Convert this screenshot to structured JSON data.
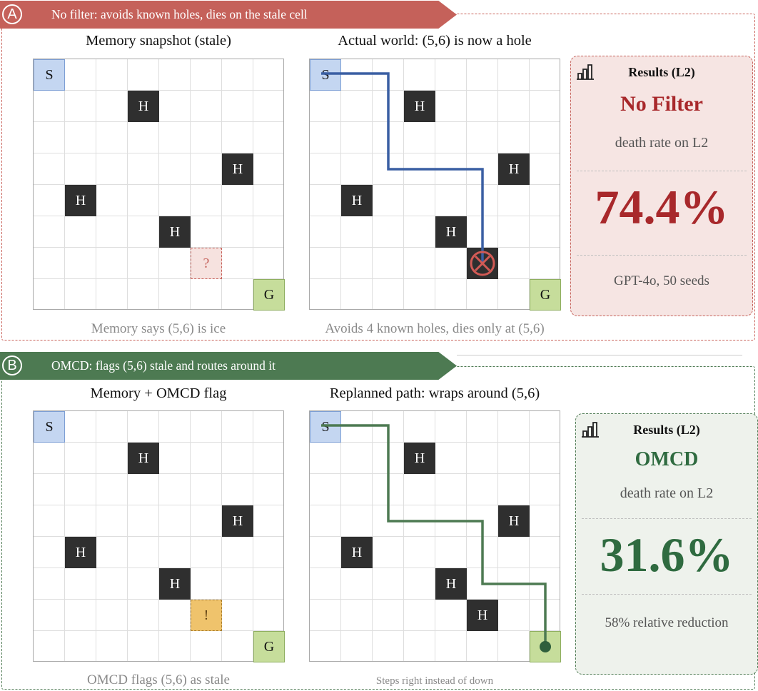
{
  "panelA": {
    "badge": "A",
    "banner": "No filter: avoids known holes, dies on the stale cell",
    "left_title": "Memory snapshot (stale)",
    "left_caption": "Memory says (5,6) is ice",
    "right_title": "Actual world: (5,6) is now a hole",
    "right_caption": "Avoids 4 known holes, dies only at (5,6)",
    "stale_mark": "?",
    "card": {
      "heading": "Results (L2)",
      "name": "No Filter",
      "subtitle": "death rate on L2",
      "value": "74.4%",
      "footer": "GPT-4o, 50 seeds"
    }
  },
  "panelB": {
    "badge": "B",
    "banner": "OMCD: flags (5,6) stale and routes around it",
    "left_title": "Memory + OMCD flag",
    "left_caption": "OMCD flags (5,6) as stale",
    "right_title": "Replanned path: wraps around (5,6)",
    "right_caption": "Steps right instead of down",
    "stale_mark": "!",
    "card": {
      "heading": "Results (L2)",
      "name": "OMCD",
      "subtitle": "death rate on L2",
      "value": "31.6%",
      "footer": "58% relative reduction"
    }
  },
  "cells": {
    "start": "S",
    "goal": "G",
    "hole": "H"
  },
  "colors": {
    "red": "#c5615a",
    "red_text": "#a8282b",
    "green": "#4d7a52",
    "green_text": "#2f6b40",
    "blue_path": "#3a5fa3"
  }
}
